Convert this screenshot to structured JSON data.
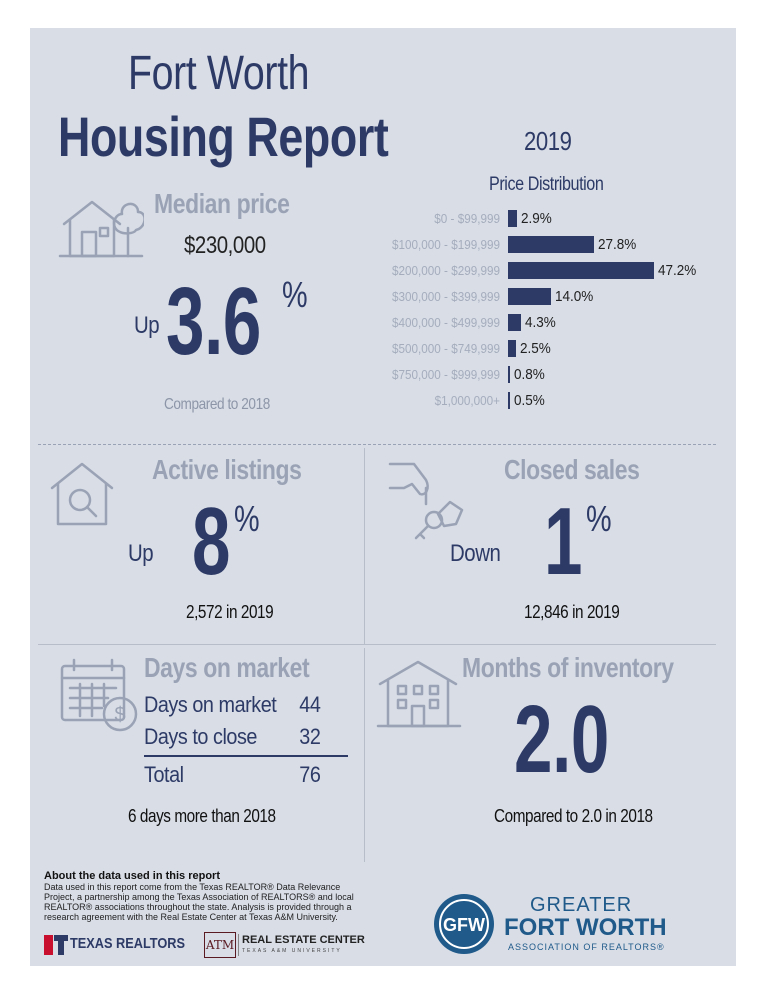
{
  "header": {
    "title_line1": "Fort Worth",
    "title_line2": "Housing Report",
    "year": "2019"
  },
  "median": {
    "label": "Median price",
    "price": "$230,000",
    "direction": "Up",
    "change": "3.6",
    "pct_sign": "%",
    "compare": "Compared to 2018"
  },
  "distribution": {
    "title": "Price Distribution",
    "rows": [
      {
        "range": "$0 - $99,999",
        "value": 2.9,
        "label": "2.9%"
      },
      {
        "range": "$100,000 - $199,999",
        "value": 27.8,
        "label": "27.8%"
      },
      {
        "range": "$200,000 - $299,999",
        "value": 47.2,
        "label": "47.2%"
      },
      {
        "range": "$300,000 - $399,999",
        "value": 14.0,
        "label": "14.0%"
      },
      {
        "range": "$400,000 - $499,999",
        "value": 4.3,
        "label": "4.3%"
      },
      {
        "range": "$500,000 - $749,999",
        "value": 2.5,
        "label": "2.5%"
      },
      {
        "range": "$750,000 - $999,999",
        "value": 0.8,
        "label": "0.8%"
      },
      {
        "range": "$1,000,000+",
        "value": 0.5,
        "label": "0.5%"
      }
    ]
  },
  "chart_data": {
    "type": "bar",
    "orientation": "horizontal",
    "title": "Price Distribution",
    "categories": [
      "$0 - $99,999",
      "$100,000 - $199,999",
      "$200,000 - $299,999",
      "$300,000 - $399,999",
      "$400,000 - $499,999",
      "$500,000 - $749,999",
      "$750,000 - $999,999",
      "$1,000,000+"
    ],
    "values": [
      2.9,
      27.8,
      47.2,
      14.0,
      4.3,
      2.5,
      0.8,
      0.5
    ],
    "unit": "%"
  },
  "active": {
    "label": "Active listings",
    "direction": "Up",
    "change": "8",
    "pct_sign": "%",
    "count": "2,572 in 2019"
  },
  "closed": {
    "label": "Closed sales",
    "direction": "Down",
    "change": "1",
    "pct_sign": "%",
    "count": "12,846 in 2019"
  },
  "dom": {
    "label": "Days on market",
    "rows": [
      {
        "name": "Days on market",
        "value": "44"
      },
      {
        "name": "Days to close",
        "value": "32"
      }
    ],
    "total_name": "Total",
    "total_value": "76",
    "note": "6 days more than 2018"
  },
  "moi": {
    "label": "Months of inventory",
    "value": "2.0",
    "compare": "Compared to 2.0 in 2018"
  },
  "about": {
    "heading": "About the data used in this report",
    "text": "Data used in this report come from the Texas REALTOR® Data Relevance Project, a partnership among the Texas Association of REALTORS® and local REALTOR® associations throughout the state. Analysis is provided through a research agreement with the Real Estate Center at Texas A&M University."
  },
  "logos": {
    "texas_realtors": "TEXAS REALTORS",
    "tam_mark": "ATM",
    "rec_line1": "REAL ESTATE CENTER",
    "rec_line2": "TEXAS A&M UNIVERSITY",
    "gfw_badge": "GFW",
    "gfw_line1": "GREATER",
    "gfw_line2": "FORT WORTH",
    "gfw_line3": "ASSOCIATION OF REALTORS®"
  },
  "colors": {
    "navy": "#2d3a66",
    "gray": "#9aa3b5",
    "card": "#d8dde6",
    "accent_red": "#c8102e",
    "gfw_blue": "#1f5a8a"
  }
}
